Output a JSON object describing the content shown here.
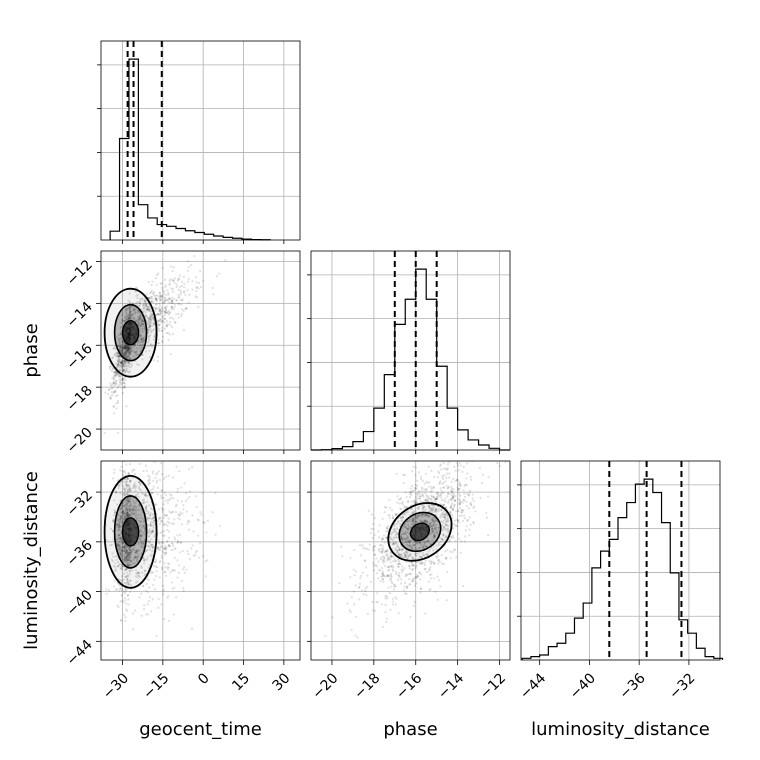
{
  "chart_data": {
    "type": "corner",
    "parameters": [
      "geocent_time",
      "phase",
      "luminosity_distance"
    ],
    "axis_labels": {
      "x": [
        "geocent_time",
        "phase",
        "luminosity_distance"
      ],
      "y": [
        "phase",
        "luminosity_distance"
      ]
    },
    "ranges": {
      "geocent_time": [
        -38,
        36
      ],
      "phase": [
        -21,
        -11.5
      ],
      "luminosity_distance": [
        -45.5,
        -29.5
      ]
    },
    "ticks": {
      "geocent_time": [
        -30,
        -15,
        0,
        15,
        30
      ],
      "phase": [
        -20,
        -18,
        -16,
        -14,
        -12
      ],
      "luminosity_distance": [
        -44,
        -40,
        -36,
        -32
      ]
    },
    "tick_labels": {
      "geocent_time": [
        "−30",
        "−15",
        "0",
        "15",
        "30"
      ],
      "phase": [
        "−20",
        "−18",
        "−16",
        "−14",
        "−12"
      ],
      "luminosity_distance": [
        "−44",
        "−40",
        "−36",
        "−32"
      ]
    },
    "grid": true,
    "histograms": {
      "geocent_time": {
        "bin_edges": [
          -34.6,
          -31.1,
          -27.6,
          -24.1,
          -20.6,
          -17.1,
          -13.6,
          -10.1,
          -6.6,
          -3.1,
          0.4,
          3.9,
          7.4,
          10.9,
          14.4,
          17.9,
          21.4,
          24.9
        ],
        "counts": [
          2,
          23,
          41,
          8,
          5,
          3.5,
          3.1,
          2.6,
          2.1,
          1.7,
          1.3,
          0.9,
          0.6,
          0.4,
          0.2,
          0.1,
          0.05
        ],
        "quantiles": [
          -28.1,
          -25.9,
          -15.4
        ]
      },
      "phase": {
        "bin_edges": [
          -21.0,
          -20.5,
          -20.0,
          -19.5,
          -19.0,
          -18.5,
          -18.0,
          -17.5,
          -17.0,
          -16.5,
          -16.0,
          -15.5,
          -15.0,
          -14.5,
          -14.0,
          -13.5,
          -13.0,
          -12.5,
          -12.0,
          -11.5
        ],
        "counts": [
          0,
          0.02,
          0.08,
          0.2,
          0.5,
          1.1,
          2.5,
          4.5,
          7.5,
          9.0,
          10.8,
          9.0,
          5.0,
          2.5,
          1.2,
          0.6,
          0.3,
          0.1,
          0
        ],
        "quantiles": [
          -17.0,
          -16.0,
          -15.0
        ]
      },
      "luminosity_distance": {
        "bin_edges": [
          -45.4,
          -44.7,
          -44.0,
          -43.3,
          -42.6,
          -41.9,
          -41.2,
          -40.5,
          -39.8,
          -39.1,
          -38.4,
          -37.7,
          -37.0,
          -36.3,
          -35.6,
          -34.9,
          -34.2,
          -33.5,
          -32.8,
          -32.1,
          -31.4,
          -30.7,
          -30.0,
          -29.3
        ],
        "counts": [
          0.1,
          0.2,
          0.3,
          0.8,
          1.0,
          1.6,
          2.5,
          3.4,
          5.5,
          6.5,
          7.2,
          8.5,
          9.4,
          10.5,
          10.8,
          10.0,
          8.2,
          5.2,
          2.4,
          1.6,
          0.7,
          0.2,
          0.1
        ],
        "quantiles": [
          -38.4,
          -35.4,
          -32.6
        ]
      }
    },
    "scatter": {
      "phase_vs_geocent_time": {
        "x": "geocent_time",
        "y": "phase",
        "mean": [
          -20.5,
          -15.4
        ],
        "std": [
          10.3,
          1.25
        ],
        "corr": 0.78
      },
      "luminosity_distance_vs_geocent_time": {
        "x": "geocent_time",
        "y": "luminosity_distance",
        "mean": [
          -22.5,
          -35.2
        ],
        "std": [
          8.2,
          2.7
        ],
        "corr": 0.0
      },
      "luminosity_distance_vs_phase": {
        "x": "phase",
        "y": "luminosity_distance",
        "mean": [
          -15.8,
          -35.2
        ],
        "std": [
          1.25,
          2.5
        ],
        "corr": 0.6
      }
    }
  }
}
